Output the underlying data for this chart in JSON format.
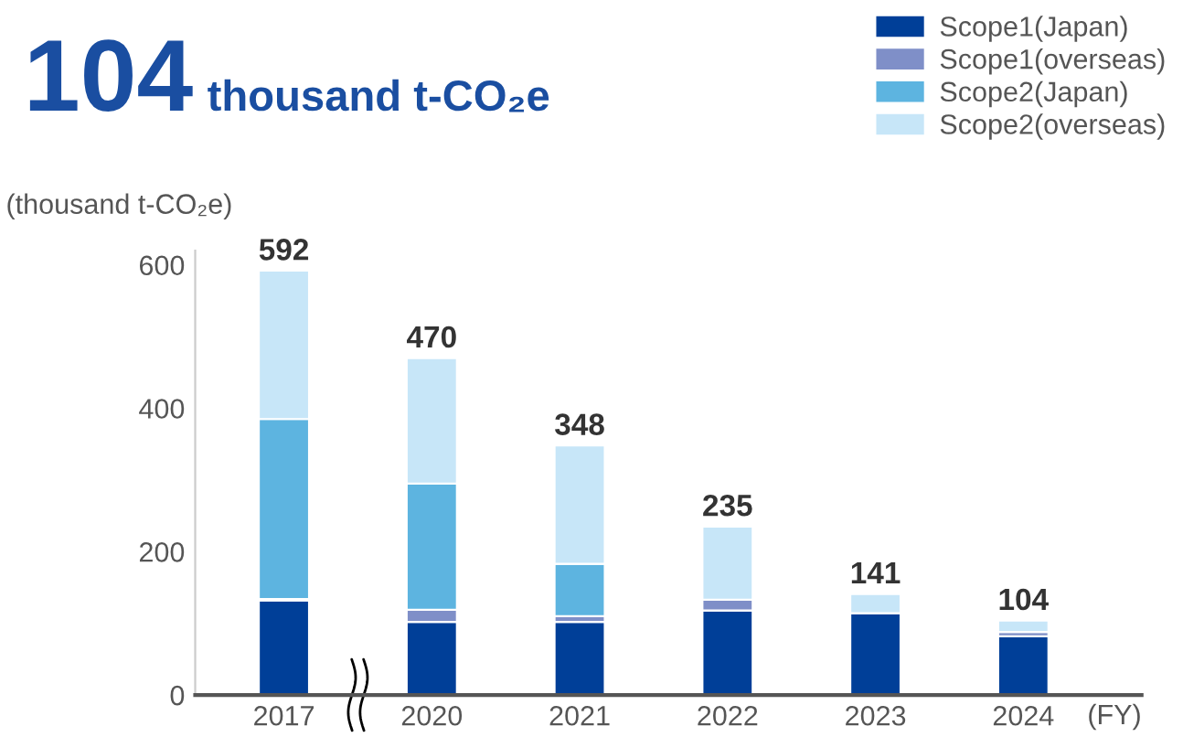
{
  "chart_data": {
    "type": "bar",
    "title": "104",
    "subtitle": "thousand t-CO₂e",
    "ylabel": "(thousand t-CO₂e)",
    "xlabel": "(FY)",
    "categories": [
      "2017",
      "2020",
      "2021",
      "2022",
      "2023",
      "2024"
    ],
    "series": [
      {
        "name": "Scope1(Japan)",
        "color": "#003f98",
        "values": [
          132,
          102,
          102,
          118,
          114,
          82
        ]
      },
      {
        "name": "Scope1(overseas)",
        "color": "#7f8fc8",
        "values": [
          2,
          17,
          8,
          15,
          0,
          6
        ]
      },
      {
        "name": "Scope2(Japan)",
        "color": "#5db4e0",
        "values": [
          251,
          176,
          73,
          0,
          0,
          0
        ]
      },
      {
        "name": "Scope2(overseas)",
        "color": "#c7e6f8",
        "values": [
          207,
          175,
          165,
          102,
          27,
          16
        ]
      }
    ],
    "stacked": true,
    "totals": [
      "592",
      "470",
      "348",
      "235",
      "141",
      "104"
    ],
    "ylim": [
      0,
      620
    ],
    "yticks": [
      0,
      200,
      400,
      600
    ],
    "grid": false,
    "legend": "top right"
  }
}
